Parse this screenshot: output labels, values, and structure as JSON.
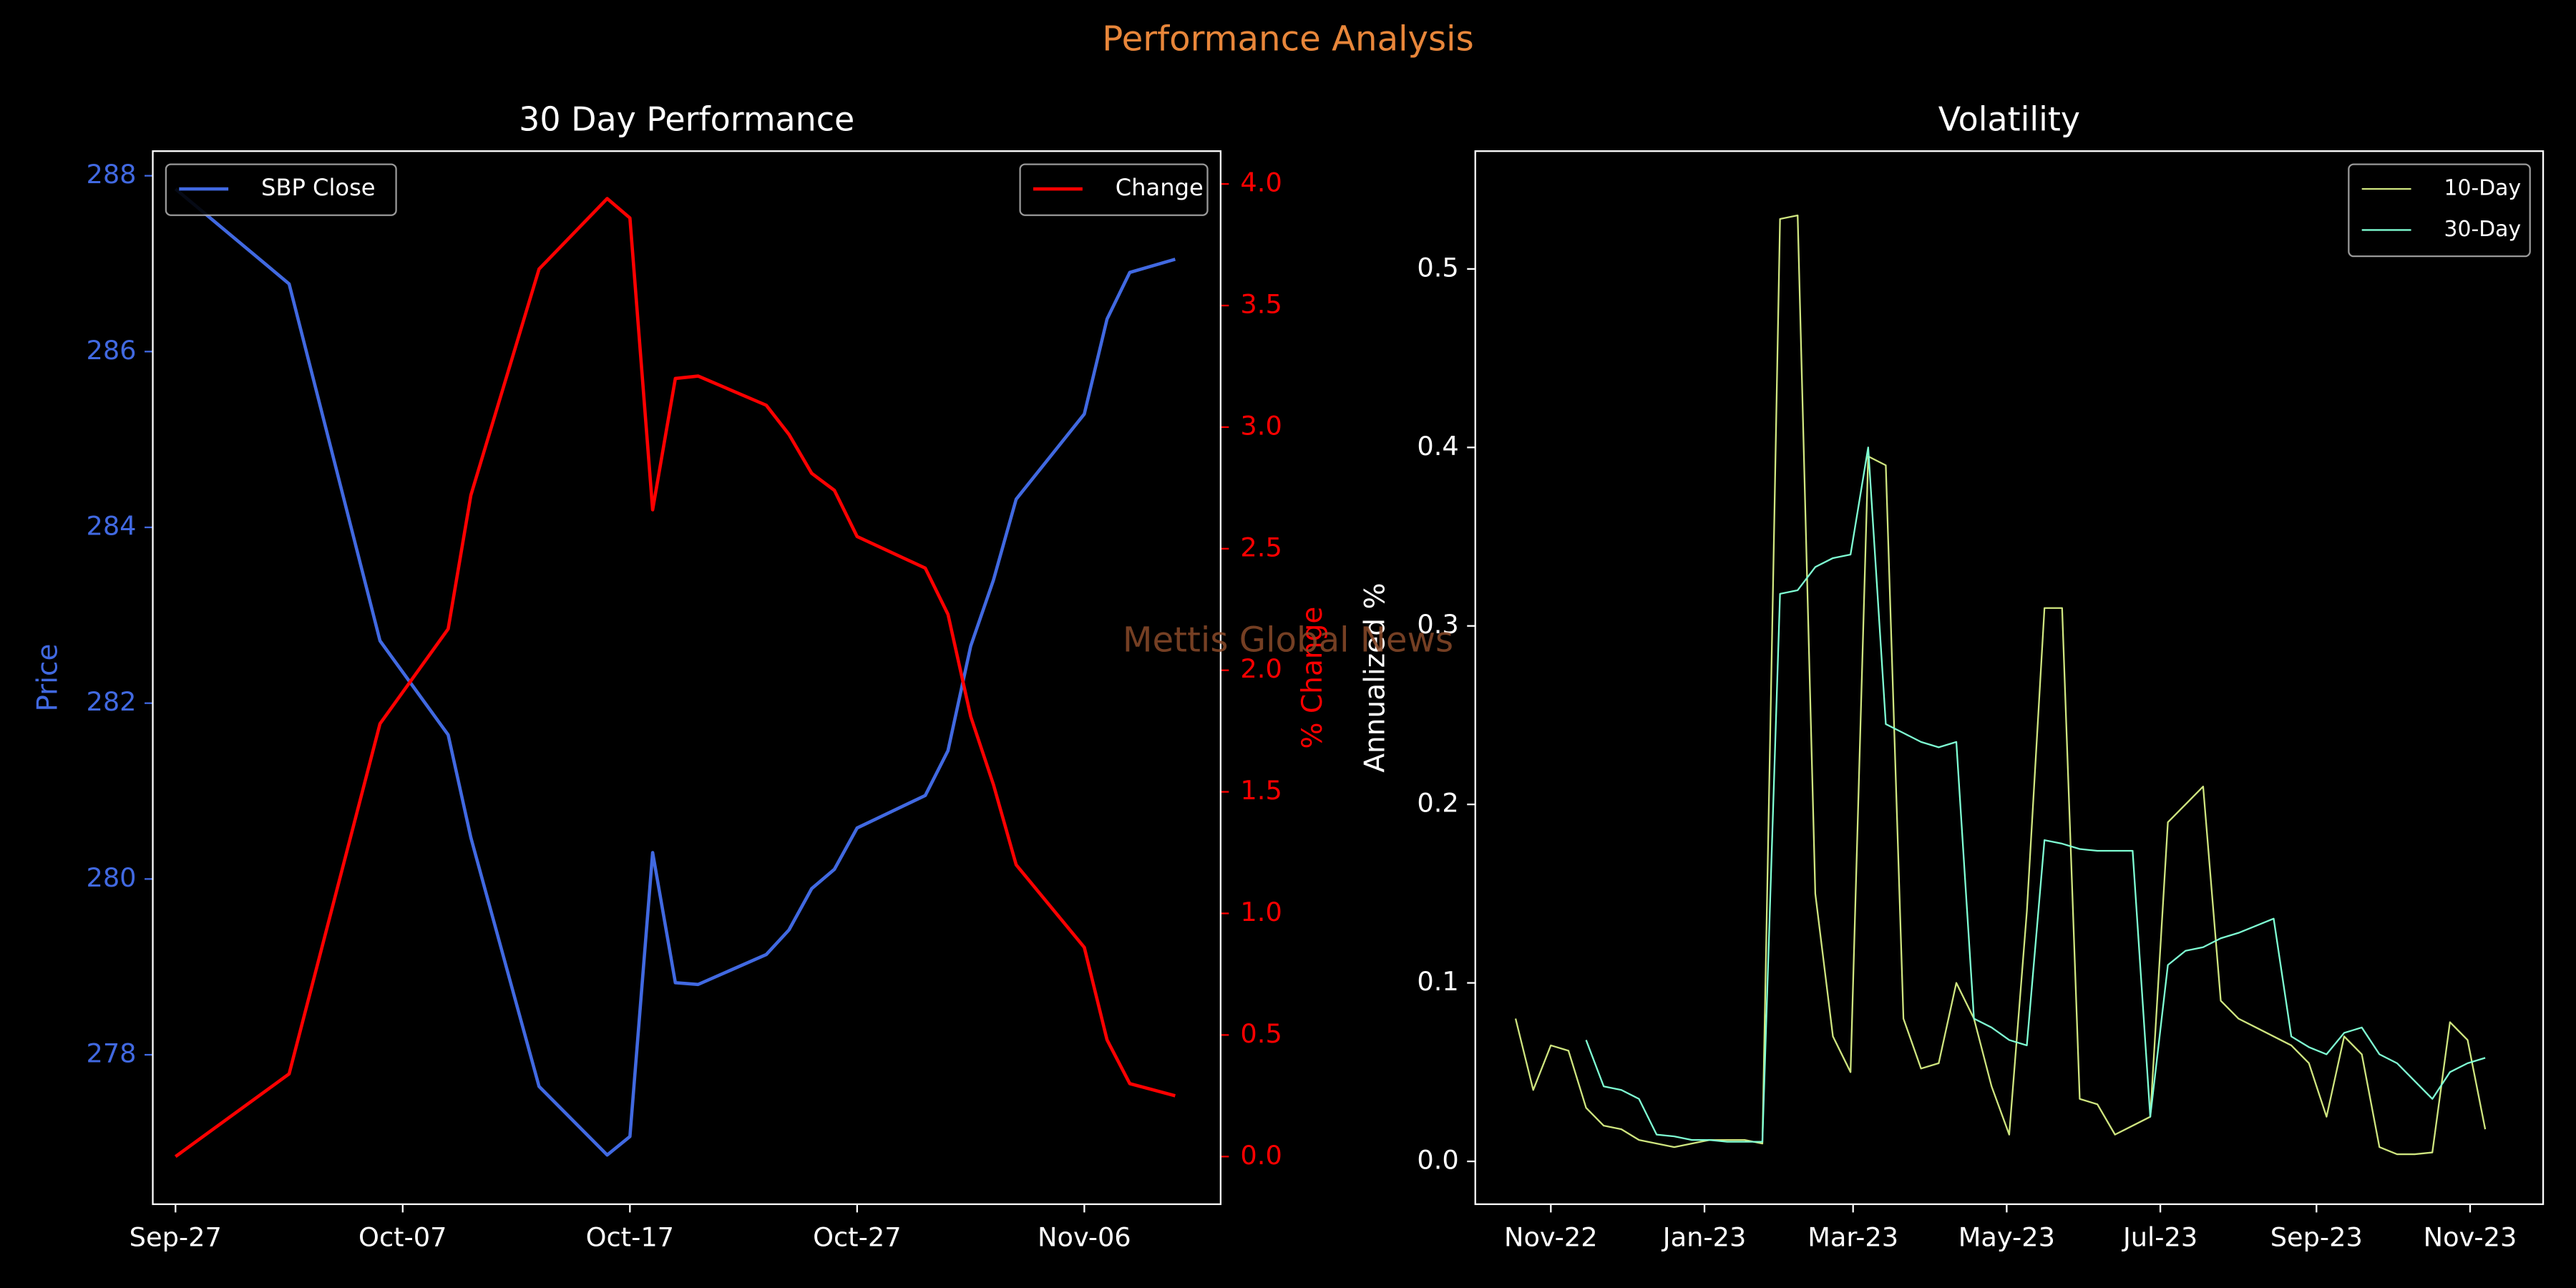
{
  "title": "Performance Analysis",
  "watermark": "Mettis Global News",
  "chart_data": [
    {
      "type": "line",
      "title": "30 Day Performance",
      "ylabel": "Price",
      "y2label": "% Change",
      "yaxis_color": "#4169e1",
      "y2axis_color": "#ff0000",
      "x": [
        "Sep-27",
        "Oct-02",
        "Oct-06",
        "Oct-09",
        "Oct-10",
        "Oct-13",
        "Oct-16",
        "Oct-17",
        "Oct-18",
        "Oct-19",
        "Oct-20",
        "Oct-23",
        "Oct-24",
        "Oct-25",
        "Oct-26",
        "Oct-27",
        "Oct-30",
        "Oct-31",
        "Nov-01",
        "Nov-02",
        "Nov-03",
        "Nov-06",
        "Nov-07",
        "Nov-08",
        "Nov-10"
      ],
      "xlim": [
        "Sep-26",
        "Nov-12"
      ],
      "xticks": [
        "Sep-27",
        "Oct-07",
        "Oct-17",
        "Oct-27",
        "Nov-06"
      ],
      "ylim": [
        276.3,
        288.28
      ],
      "yticks": [
        278,
        280,
        282,
        284,
        286,
        288
      ],
      "y2lim": [
        -0.196,
        4.135
      ],
      "y2ticks": [
        {
          "value": 0,
          "label": "0.0"
        },
        0.5,
        {
          "value": 1,
          "label": "1.0"
        },
        1.5,
        {
          "value": 2,
          "label": "2.0"
        },
        2.5,
        {
          "value": 3,
          "label": "3.0"
        },
        3.5,
        {
          "value": 4,
          "label": "4.0"
        }
      ],
      "series": [
        {
          "name": "SBP Close",
          "color": "#4169e1",
          "legend": "upper left",
          "values": [
            287.85,
            286.77,
            282.71,
            281.64,
            280.47,
            277.64,
            276.86,
            277.07,
            280.3,
            278.82,
            278.8,
            279.14,
            279.42,
            279.89,
            280.11,
            280.58,
            280.95,
            281.46,
            282.65,
            283.4,
            284.32,
            285.29,
            286.37,
            286.9,
            287.05
          ]
        },
        {
          "name": "Change",
          "color": "#ff0000",
          "legend": "upper right",
          "axis": "y2",
          "values": [
            0.0,
            0.34,
            1.78,
            2.17,
            2.72,
            3.65,
            3.94,
            3.86,
            2.66,
            3.2,
            3.21,
            3.09,
            2.97,
            2.81,
            2.74,
            2.55,
            2.42,
            2.23,
            1.81,
            1.53,
            1.2,
            0.86,
            0.48,
            0.3,
            0.25
          ]
        }
      ]
    },
    {
      "type": "line",
      "title": "Volatility",
      "ylabel": "Annualized %",
      "x": [
        "2022-10-18",
        "2022-10-25",
        "2022-11-01",
        "2022-11-08",
        "2022-11-15",
        "2022-11-22",
        "2022-11-29",
        "2022-12-06",
        "2022-12-13",
        "2022-12-20",
        "2022-12-27",
        "2023-01-03",
        "2023-01-10",
        "2023-01-17",
        "2023-01-24",
        "2023-01-31",
        "2023-02-07",
        "2023-02-14",
        "2023-02-21",
        "2023-02-28",
        "2023-03-07",
        "2023-03-14",
        "2023-03-21",
        "2023-03-28",
        "2023-04-04",
        "2023-04-11",
        "2023-04-18",
        "2023-04-25",
        "2023-05-02",
        "2023-05-09",
        "2023-05-16",
        "2023-05-23",
        "2023-05-30",
        "2023-06-06",
        "2023-06-13",
        "2023-06-20",
        "2023-06-27",
        "2023-07-04",
        "2023-07-11",
        "2023-07-18",
        "2023-07-25",
        "2023-08-01",
        "2023-08-08",
        "2023-08-15",
        "2023-08-22",
        "2023-08-29",
        "2023-09-05",
        "2023-09-12",
        "2023-09-19",
        "2023-09-26",
        "2023-10-03",
        "2023-10-10",
        "2023-10-17",
        "2023-10-24",
        "2023-10-31",
        "2023-11-07"
      ],
      "xlim": [
        "2022-10-02",
        "2023-11-30"
      ],
      "xticks": [
        {
          "value": "2022-11-01",
          "label": "Nov-22"
        },
        {
          "value": "2023-01-01",
          "label": "Jan-23"
        },
        {
          "value": "2023-03-01",
          "label": "Mar-23"
        },
        {
          "value": "2023-05-01",
          "label": "May-23"
        },
        {
          "value": "2023-07-01",
          "label": "Jul-23"
        },
        {
          "value": "2023-09-01",
          "label": "Sep-23"
        },
        {
          "value": "2023-11-01",
          "label": "Nov-23"
        }
      ],
      "ylim": [
        -0.024,
        0.566
      ],
      "yticks": [
        {
          "value": 0,
          "label": "0.0"
        },
        0.1,
        0.2,
        0.3,
        0.4,
        0.5
      ],
      "series": [
        {
          "name": "10-Day",
          "color": "#cfe57f",
          "legend": "upper right",
          "values": [
            0.08,
            0.04,
            0.065,
            0.062,
            0.03,
            0.02,
            0.018,
            0.012,
            0.01,
            0.008,
            0.01,
            0.012,
            0.012,
            0.012,
            0.01,
            0.528,
            0.53,
            0.15,
            0.07,
            0.05,
            0.395,
            0.39,
            0.08,
            0.052,
            0.055,
            0.1,
            0.08,
            0.042,
            0.015,
            0.14,
            0.31,
            0.31,
            0.035,
            0.032,
            0.015,
            0.02,
            0.025,
            0.19,
            0.2,
            0.21,
            0.09,
            0.08,
            0.075,
            0.07,
            0.065,
            0.055,
            0.025,
            0.07,
            0.06,
            0.008,
            0.004,
            0.004,
            0.005,
            0.078,
            0.068,
            0.018
          ]
        },
        {
          "name": "30-Day",
          "color": "#7fffd4",
          "legend": "upper right",
          "values": [
            null,
            null,
            null,
            null,
            0.068,
            0.042,
            0.04,
            0.035,
            0.015,
            0.014,
            0.012,
            0.012,
            0.011,
            0.011,
            0.011,
            0.318,
            0.32,
            0.333,
            0.338,
            0.34,
            0.4,
            0.245,
            0.24,
            0.235,
            0.232,
            0.235,
            0.08,
            0.075,
            0.068,
            0.065,
            0.18,
            0.178,
            0.175,
            0.174,
            0.174,
            0.174,
            0.025,
            0.11,
            0.118,
            0.12,
            0.125,
            0.128,
            0.132,
            0.136,
            0.07,
            0.064,
            0.06,
            0.072,
            0.075,
            0.06,
            0.055,
            0.045,
            0.035,
            0.05,
            0.055,
            0.058
          ]
        }
      ]
    }
  ]
}
